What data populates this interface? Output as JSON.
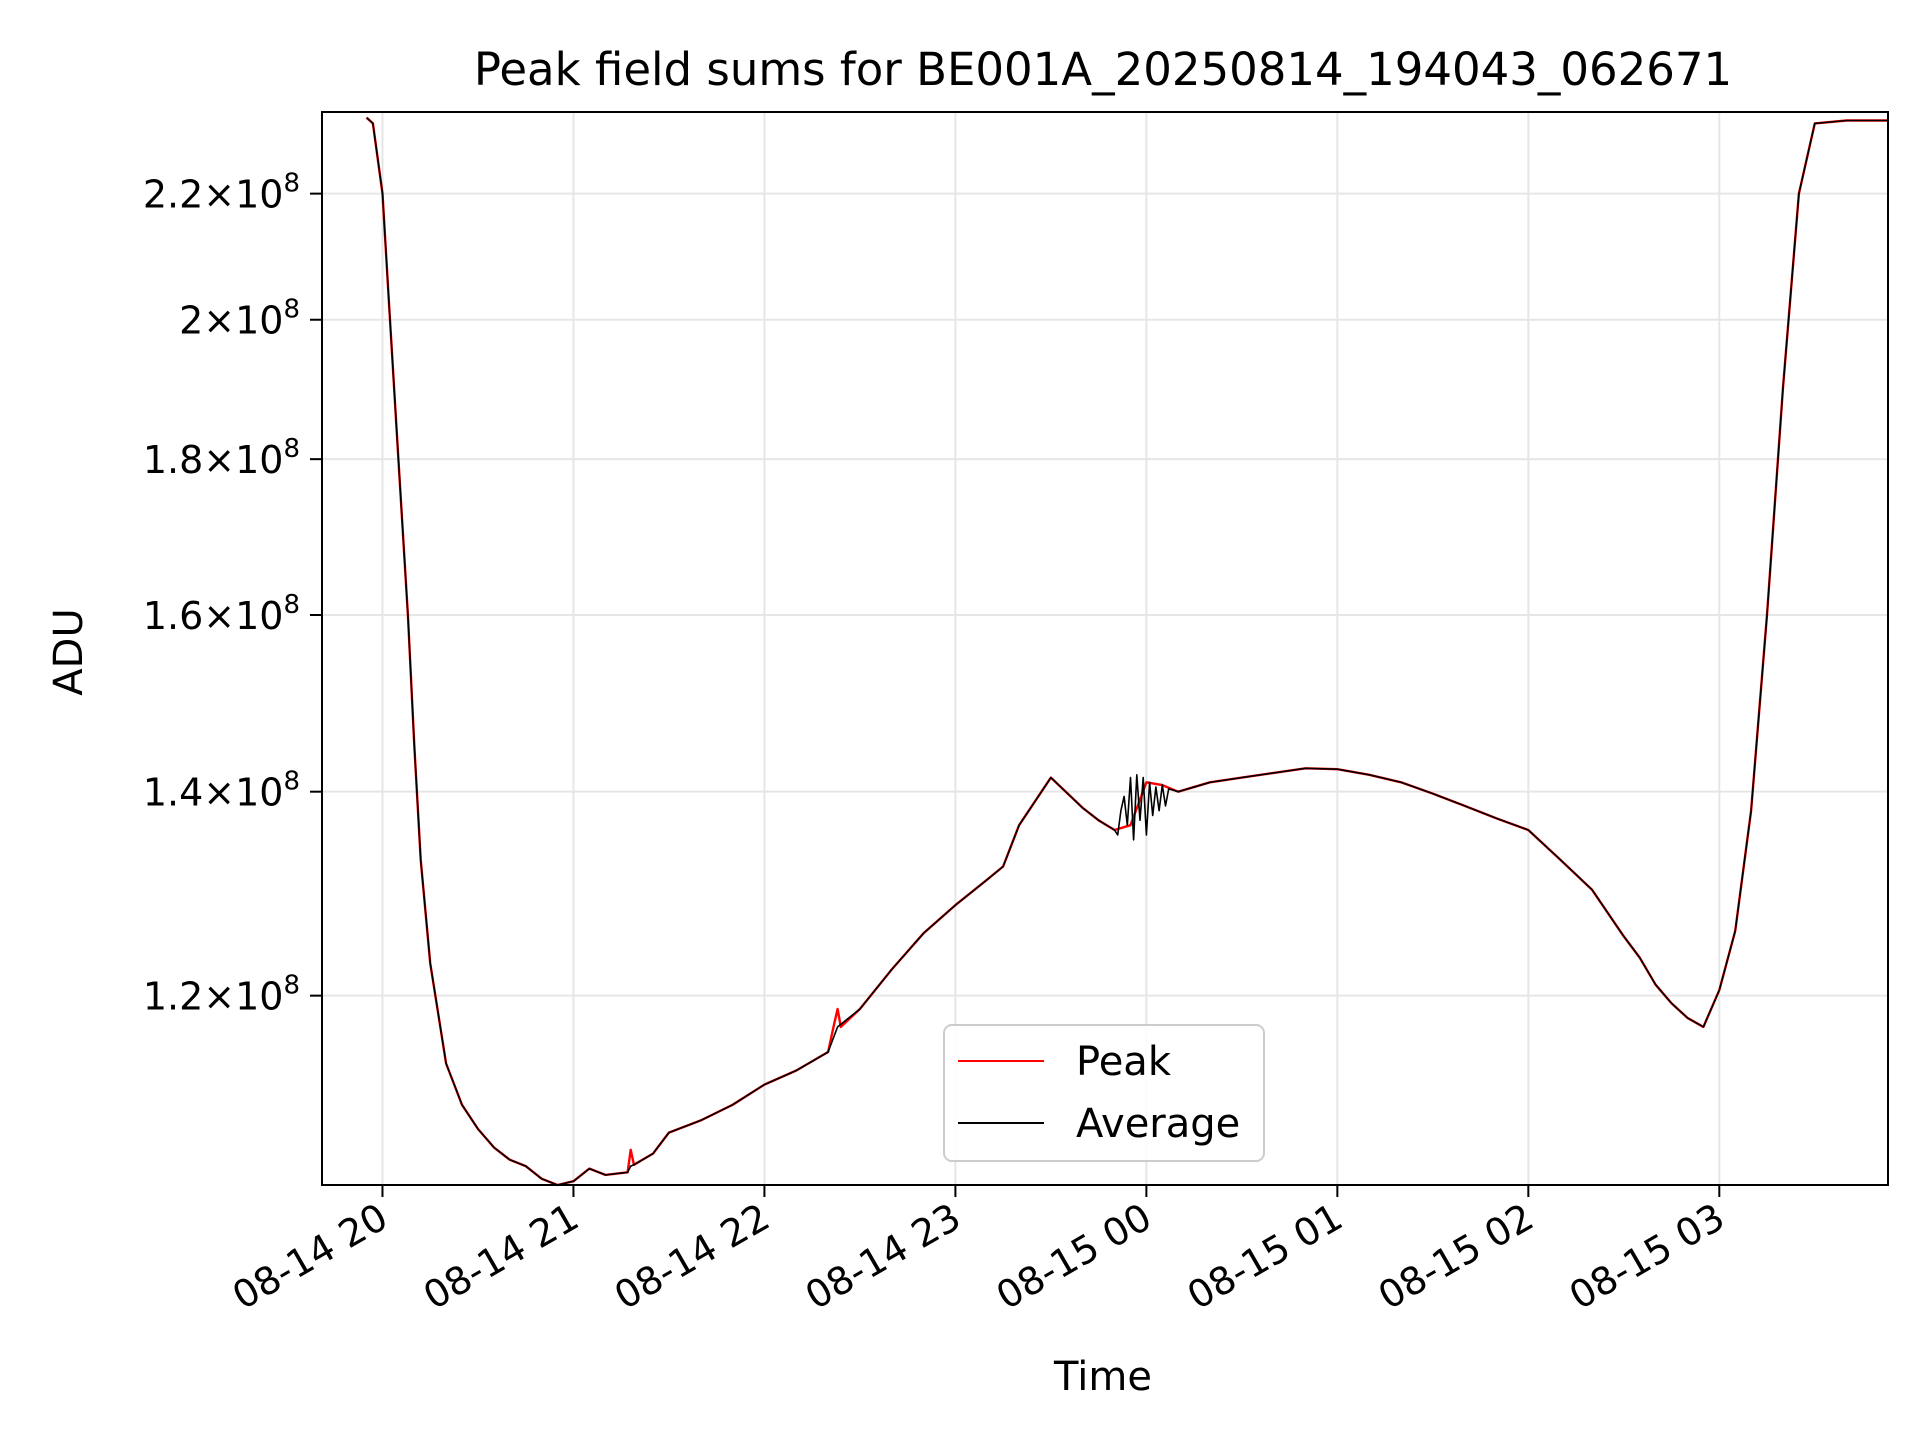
{
  "chart_data": {
    "type": "line",
    "title": "Peak field sums for BE001A_20250814_194043_062671",
    "xlabel": "Time",
    "ylabel": "ADU",
    "x_axis": {
      "kind": "time",
      "range": [
        "2025-08-14 19:41",
        "2025-08-15 03:53"
      ],
      "ticks": [
        {
          "value": "2025-08-14 20:00",
          "label": "08-14 20"
        },
        {
          "value": "2025-08-14 21:00",
          "label": "08-14 21"
        },
        {
          "value": "2025-08-14 22:00",
          "label": "08-14 22"
        },
        {
          "value": "2025-08-14 23:00",
          "label": "08-14 23"
        },
        {
          "value": "2025-08-15 00:00",
          "label": "08-15 00"
        },
        {
          "value": "2025-08-15 01:00",
          "label": "08-15 01"
        },
        {
          "value": "2025-08-15 02:00",
          "label": "08-15 02"
        },
        {
          "value": "2025-08-15 03:00",
          "label": "08-15 03"
        }
      ]
    },
    "y_axis": {
      "scale": "log",
      "range": [
        104000000,
        234000000
      ],
      "ticks": [
        {
          "value": 120000000,
          "mantissa": "1.2",
          "exp": "8"
        },
        {
          "value": 140000000,
          "mantissa": "1.4",
          "exp": "8"
        },
        {
          "value": 160000000,
          "mantissa": "1.6",
          "exp": "8"
        },
        {
          "value": 180000000,
          "mantissa": "1.8",
          "exp": "8"
        },
        {
          "value": 200000000,
          "mantissa": "2",
          "exp": "8"
        },
        {
          "value": 220000000,
          "mantissa": "2.2",
          "exp": "8"
        }
      ]
    },
    "grid": true,
    "legend_position": "lower-center",
    "series": [
      {
        "name": "Peak",
        "color": "#ff0000",
        "x": [
          "2025-08-14 19:55",
          "2025-08-14 19:57",
          "2025-08-14 20:00",
          "2025-08-14 20:02",
          "2025-08-14 20:05",
          "2025-08-14 20:08",
          "2025-08-14 20:10",
          "2025-08-14 20:12",
          "2025-08-14 20:15",
          "2025-08-14 20:20",
          "2025-08-14 20:25",
          "2025-08-14 20:30",
          "2025-08-14 20:35",
          "2025-08-14 20:40",
          "2025-08-14 20:45",
          "2025-08-14 20:50",
          "2025-08-14 20:55",
          "2025-08-14 21:00",
          "2025-08-14 21:05",
          "2025-08-14 21:10",
          "2025-08-14 21:17",
          "2025-08-14 21:18",
          "2025-08-14 21:19",
          "2025-08-14 21:25",
          "2025-08-14 21:30",
          "2025-08-14 21:40",
          "2025-08-14 21:50",
          "2025-08-14 22:00",
          "2025-08-14 22:10",
          "2025-08-14 22:20",
          "2025-08-14 22:22",
          "2025-08-14 22:23",
          "2025-08-14 22:24",
          "2025-08-14 22:30",
          "2025-08-14 22:40",
          "2025-08-14 22:50",
          "2025-08-14 23:00",
          "2025-08-14 23:10",
          "2025-08-14 23:15",
          "2025-08-14 23:20",
          "2025-08-14 23:30",
          "2025-08-14 23:40",
          "2025-08-14 23:45",
          "2025-08-14 23:50",
          "2025-08-14 23:55",
          "2025-08-15 00:00",
          "2025-08-15 00:05",
          "2025-08-15 00:10",
          "2025-08-15 00:20",
          "2025-08-15 00:30",
          "2025-08-15 00:40",
          "2025-08-15 00:50",
          "2025-08-15 01:00",
          "2025-08-15 01:10",
          "2025-08-15 01:20",
          "2025-08-15 01:30",
          "2025-08-15 01:40",
          "2025-08-15 01:50",
          "2025-08-15 02:00",
          "2025-08-15 02:10",
          "2025-08-15 02:20",
          "2025-08-15 02:30",
          "2025-08-15 02:35",
          "2025-08-15 02:40",
          "2025-08-15 02:45",
          "2025-08-15 02:50",
          "2025-08-15 02:55",
          "2025-08-15 03:00",
          "2025-08-15 03:05",
          "2025-08-15 03:10",
          "2025-08-15 03:15",
          "2025-08-15 03:20",
          "2025-08-15 03:25",
          "2025-08-15 03:30",
          "2025-08-15 03:40",
          "2025-08-15 03:53"
        ],
        "y": [
          233000000,
          232000000,
          220000000,
          203000000,
          180000000,
          160000000,
          145000000,
          133000000,
          123000000,
          114000000,
          110500000,
          108500000,
          107000000,
          106000000,
          105500000,
          104500000,
          104000000,
          104300000,
          105300000,
          104800000,
          105000000,
          106800000,
          105600000,
          106500000,
          108200000,
          109200000,
          110500000,
          112200000,
          113400000,
          115000000,
          117600000,
          118800000,
          117200000,
          118800000,
          122400000,
          125800000,
          128500000,
          131000000,
          132300000,
          136500000,
          141500000,
          138300000,
          137000000,
          136000000,
          136500000,
          141000000,
          140700000,
          140000000,
          141000000,
          141500000,
          142000000,
          142500000,
          142400000,
          141800000,
          141000000,
          139800000,
          138500000,
          137200000,
          136000000,
          133000000,
          130000000,
          125500000,
          123500000,
          121000000,
          119300000,
          118000000,
          117200000,
          120500000,
          126000000,
          138000000,
          160000000,
          190000000,
          220000000,
          232000000,
          232500000,
          232500000
        ]
      },
      {
        "name": "Average",
        "color": "#000000",
        "x": [
          "2025-08-14 19:55",
          "2025-08-14 19:57",
          "2025-08-14 20:00",
          "2025-08-14 20:02",
          "2025-08-14 20:05",
          "2025-08-14 20:08",
          "2025-08-14 20:10",
          "2025-08-14 20:12",
          "2025-08-14 20:15",
          "2025-08-14 20:20",
          "2025-08-14 20:25",
          "2025-08-14 20:30",
          "2025-08-14 20:35",
          "2025-08-14 20:40",
          "2025-08-14 20:45",
          "2025-08-14 20:50",
          "2025-08-14 20:55",
          "2025-08-14 21:00",
          "2025-08-14 21:05",
          "2025-08-14 21:10",
          "2025-08-14 21:17",
          "2025-08-14 21:18",
          "2025-08-14 21:19",
          "2025-08-14 21:25",
          "2025-08-14 21:30",
          "2025-08-14 21:40",
          "2025-08-14 21:50",
          "2025-08-14 22:00",
          "2025-08-14 22:10",
          "2025-08-14 22:20",
          "2025-08-14 22:23",
          "2025-08-14 22:30",
          "2025-08-14 22:40",
          "2025-08-14 22:50",
          "2025-08-14 23:00",
          "2025-08-14 23:10",
          "2025-08-14 23:15",
          "2025-08-14 23:20",
          "2025-08-14 23:30",
          "2025-08-14 23:40",
          "2025-08-14 23:45",
          "2025-08-14 23:50",
          "2025-08-14 23:51",
          "2025-08-14 23:52",
          "2025-08-14 23:53",
          "2025-08-14 23:54",
          "2025-08-14 23:55",
          "2025-08-14 23:56",
          "2025-08-14 23:57",
          "2025-08-14 23:58",
          "2025-08-14 23:59",
          "2025-08-15 00:00",
          "2025-08-15 00:01",
          "2025-08-15 00:02",
          "2025-08-15 00:03",
          "2025-08-15 00:04",
          "2025-08-15 00:05",
          "2025-08-15 00:06",
          "2025-08-15 00:07",
          "2025-08-15 00:10",
          "2025-08-15 00:20",
          "2025-08-15 00:30",
          "2025-08-15 00:40",
          "2025-08-15 00:50",
          "2025-08-15 01:00",
          "2025-08-15 01:10",
          "2025-08-15 01:20",
          "2025-08-15 01:30",
          "2025-08-15 01:40",
          "2025-08-15 01:50",
          "2025-08-15 02:00",
          "2025-08-15 02:10",
          "2025-08-15 02:20",
          "2025-08-15 02:30",
          "2025-08-15 02:35",
          "2025-08-15 02:40",
          "2025-08-15 02:45",
          "2025-08-15 02:50",
          "2025-08-15 02:55",
          "2025-08-15 03:00",
          "2025-08-15 03:05",
          "2025-08-15 03:10",
          "2025-08-15 03:15",
          "2025-08-15 03:20",
          "2025-08-15 03:25",
          "2025-08-15 03:30",
          "2025-08-15 03:40",
          "2025-08-15 03:53"
        ],
        "y": [
          233000000,
          232000000,
          220000000,
          203000000,
          180000000,
          160000000,
          145000000,
          133000000,
          123000000,
          114000000,
          110500000,
          108500000,
          107000000,
          106000000,
          105500000,
          104500000,
          104000000,
          104300000,
          105300000,
          104800000,
          105000000,
          105500000,
          105600000,
          106500000,
          108200000,
          109200000,
          110500000,
          112200000,
          113400000,
          115000000,
          117200000,
          118800000,
          122400000,
          125800000,
          128500000,
          131000000,
          132300000,
          136500000,
          141500000,
          138300000,
          137000000,
          136000000,
          135500000,
          138000000,
          139500000,
          136500000,
          141500000,
          135000000,
          141800000,
          137000000,
          141500000,
          135500000,
          141000000,
          137500000,
          140500000,
          138000000,
          140700000,
          138500000,
          140300000,
          140000000,
          141000000,
          141500000,
          142000000,
          142500000,
          142400000,
          141800000,
          141000000,
          139800000,
          138500000,
          137200000,
          136000000,
          133000000,
          130000000,
          125500000,
          123500000,
          121000000,
          119300000,
          118000000,
          117200000,
          120500000,
          126000000,
          138000000,
          160000000,
          190000000,
          220000000,
          232000000,
          232500000,
          232500000
        ]
      }
    ]
  }
}
